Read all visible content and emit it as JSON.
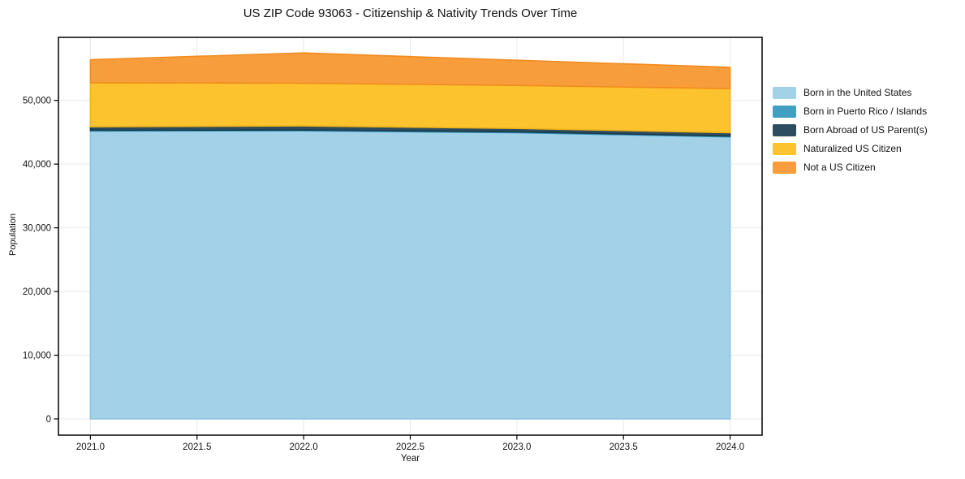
{
  "chart_data": {
    "type": "area",
    "stacked": true,
    "title": "US ZIP Code 93063 - Citizenship & Nativity Trends Over Time",
    "xlabel": "Year",
    "ylabel": "Population",
    "x": [
      2021,
      2022,
      2023,
      2024
    ],
    "series": [
      {
        "name": "Born in the United States",
        "color": "#a3d1e8",
        "edge": "#8cc4df",
        "values": [
          45200,
          45230,
          44940,
          44270
        ]
      },
      {
        "name": "Born in Puerto Rico / Islands",
        "color": "#41a0c2",
        "edge": "#2e96bc",
        "values": [
          120,
          120,
          120,
          120
        ]
      },
      {
        "name": "Born Abroad of US Parent(s)",
        "color": "#2c4d5f",
        "edge": "#1c3a4a",
        "values": [
          540,
          640,
          540,
          540
        ]
      },
      {
        "name": "Naturalized US Citizen",
        "color": "#fcc32f",
        "edge": "#f0b216",
        "values": [
          6920,
          6710,
          6760,
          6920
        ]
      },
      {
        "name": "Not a US Citizen",
        "color": "#f89d3c",
        "edge": "#f18c1f",
        "values": [
          3610,
          4750,
          3950,
          3350
        ]
      }
    ],
    "totals": [
      56390,
      57450,
      56310,
      55200
    ],
    "x_tick_values": [
      2021.0,
      2021.5,
      2022.0,
      2022.5,
      2023.0,
      2023.5,
      2024.0
    ],
    "x_tick_labels": [
      "2021.0",
      "2021.5",
      "2022.0",
      "2022.5",
      "2023.0",
      "2023.5",
      "2024.0"
    ],
    "y_tick_values": [
      0,
      10000,
      20000,
      30000,
      40000,
      50000
    ],
    "y_tick_labels": [
      "0",
      "10,000",
      "20,000",
      "30,000",
      "40,000",
      "50,000"
    ],
    "xlim": [
      2020.85,
      2024.15
    ],
    "ylim": [
      -2550,
      59900
    ],
    "grid": true,
    "grid_color": "#e9e9e9",
    "axis_color": "#000000",
    "text_color": "#111111",
    "background": "#ffffff",
    "legend_position": "right"
  }
}
